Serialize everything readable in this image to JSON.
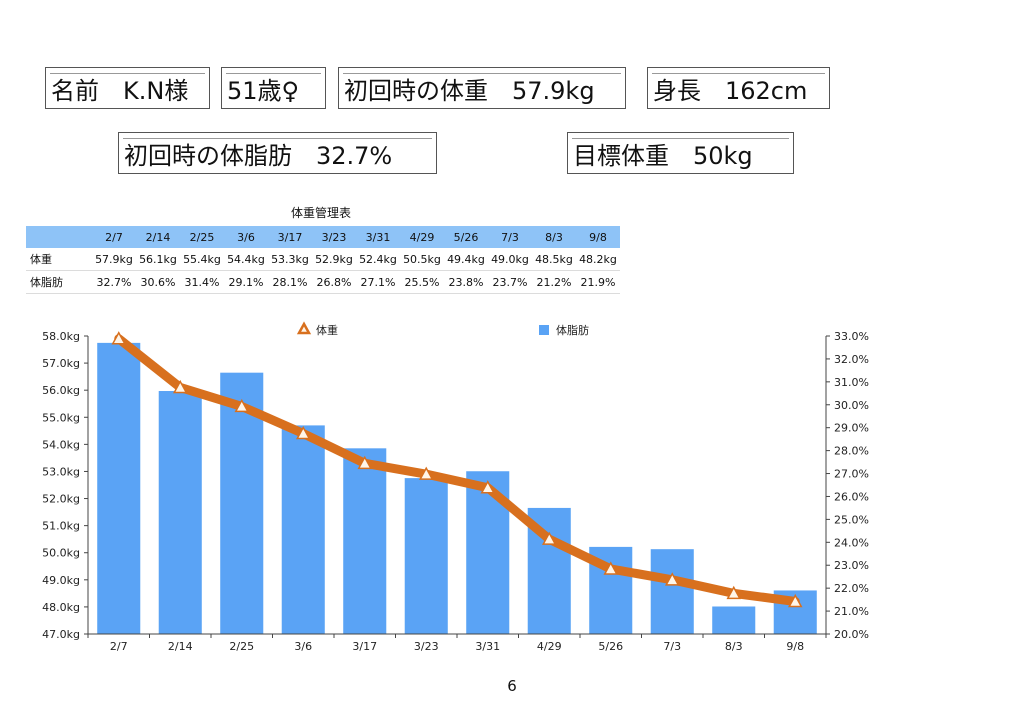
{
  "info": {
    "name": "名前　K.N様",
    "age_sex": "51歳♀",
    "initial_weight": "初回時の体重　57.9kg",
    "height": "身長　162cm",
    "initial_fat": "初回時の体脂肪　32.7%",
    "target_weight": "目標体重　50kg"
  },
  "table": {
    "title": "体重管理表",
    "dates": [
      "2/7",
      "2/14",
      "2/25",
      "3/6",
      "3/17",
      "3/23",
      "3/31",
      "4/29",
      "5/26",
      "7/3",
      "8/3",
      "9/8"
    ],
    "rows": [
      {
        "label": "体重",
        "values": [
          "57.9kg",
          "56.1kg",
          "55.4kg",
          "54.4kg",
          "53.3kg",
          "52.9kg",
          "52.4kg",
          "50.5kg",
          "49.4kg",
          "49.0kg",
          "48.5kg",
          "48.2kg"
        ]
      },
      {
        "label": "体脂肪",
        "values": [
          "32.7%",
          "30.6%",
          "31.4%",
          "29.1%",
          "28.1%",
          "26.8%",
          "27.1%",
          "25.5%",
          "23.8%",
          "23.7%",
          "21.2%",
          "21.9%"
        ]
      }
    ]
  },
  "chart_data": {
    "type": "bar",
    "categories": [
      "2/7",
      "2/14",
      "2/25",
      "3/6",
      "3/17",
      "3/23",
      "3/31",
      "4/29",
      "5/26",
      "7/3",
      "8/3",
      "9/8"
    ],
    "series": [
      {
        "name": "体重",
        "kind": "line",
        "axis": "right",
        "color": "#d8701e",
        "values": [
          57.9,
          56.1,
          55.4,
          54.4,
          53.3,
          52.9,
          52.4,
          50.5,
          49.4,
          49.0,
          48.5,
          48.2
        ]
      },
      {
        "name": "体脂肪",
        "kind": "bar",
        "axis": "left",
        "color": "#5aa3f5",
        "values": [
          32.7,
          30.6,
          31.4,
          29.1,
          28.1,
          26.8,
          27.1,
          25.5,
          23.8,
          23.7,
          21.2,
          21.9
        ]
      }
    ],
    "left_axis": {
      "min": 47.0,
      "max": 58.0,
      "ticks": [
        "47.0kg",
        "48.0kg",
        "49.0kg",
        "50.0kg",
        "51.0kg",
        "52.0kg",
        "53.0kg",
        "54.0kg",
        "55.0kg",
        "56.0kg",
        "57.0kg",
        "58.0kg"
      ]
    },
    "right_axis": {
      "min": 20.0,
      "max": 33.0,
      "ticks": [
        "20.0%",
        "21.0%",
        "22.0%",
        "23.0%",
        "24.0%",
        "25.0%",
        "26.0%",
        "27.0%",
        "28.0%",
        "29.0%",
        "30.0%",
        "31.0%",
        "32.0%",
        "33.0%"
      ]
    },
    "legend_position": "top",
    "grid": false
  },
  "page_number": "6"
}
